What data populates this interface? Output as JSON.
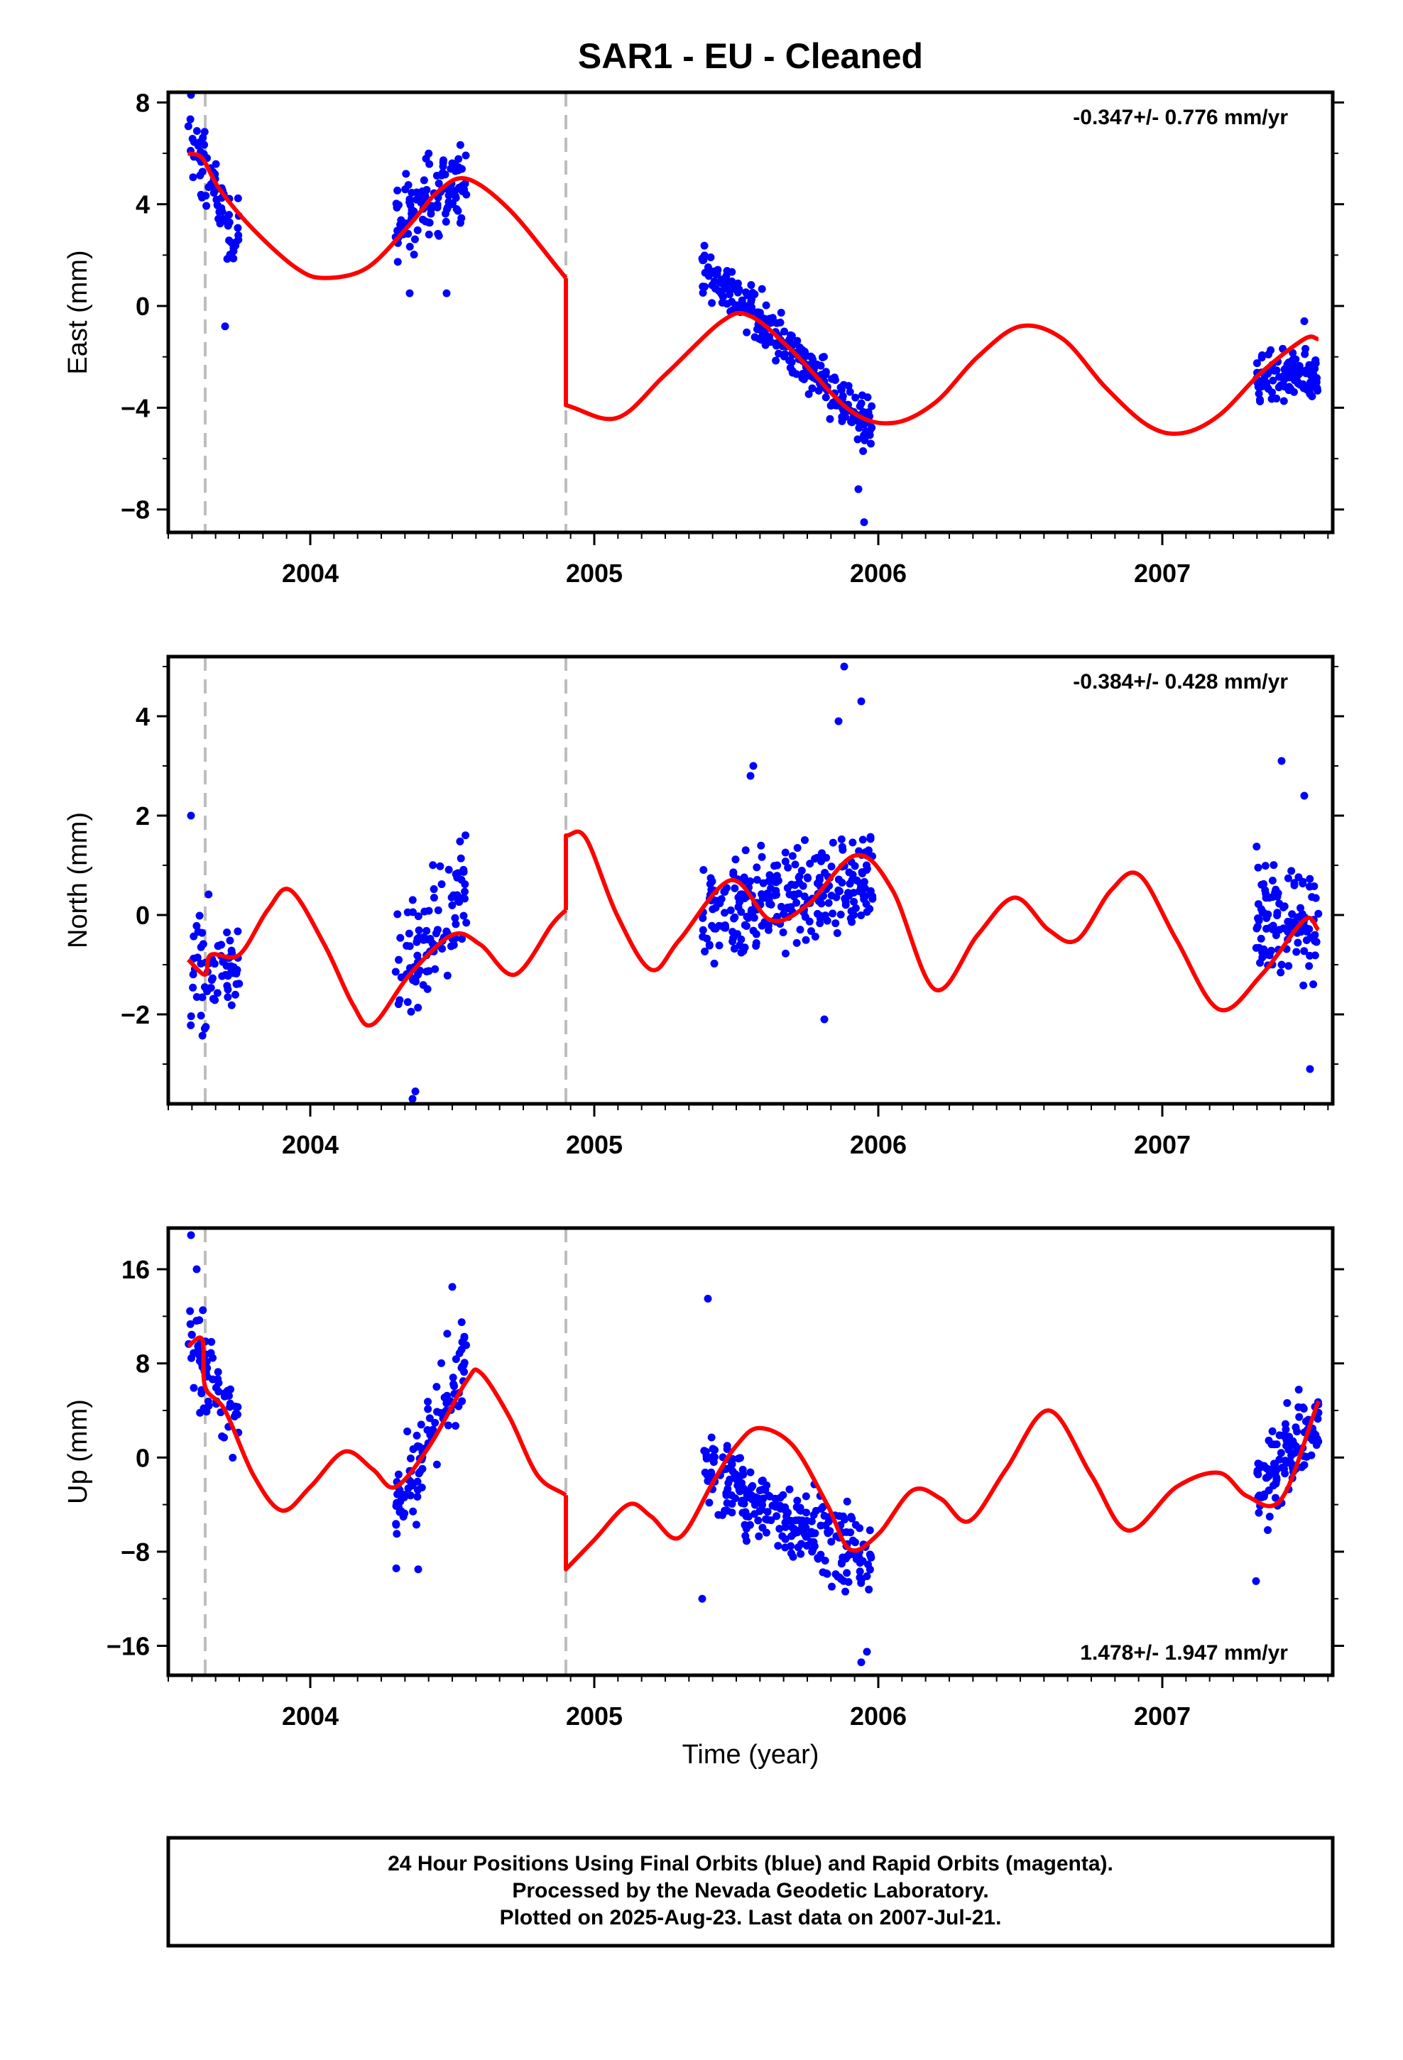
{
  "title": "SAR1  - EU - Cleaned",
  "xlabel": "Time (year)",
  "footer": {
    "line1": "24 Hour Positions Using Final Orbits (blue) and Rapid Orbits (magenta).",
    "line2": "Processed by the Nevada Geodetic Laboratory.",
    "line3": "Plotted on 2025-Aug-23. Last data on 2007-Jul-21."
  },
  "colors": {
    "data": "#0000ff",
    "model": "#ff0000",
    "steps": "#bdbdbd",
    "frame": "#000000"
  },
  "chart_data": [
    {
      "type": "scatter",
      "ylabel": "East (mm)",
      "rate": "-0.347+/- 0.776 mm/yr",
      "xlim": [
        2003.5,
        2007.6
      ],
      "ylim": [
        -8.9,
        8.4
      ],
      "yticks": [
        -8,
        -4,
        0,
        4,
        8
      ],
      "xticks": [
        2004,
        2005,
        2006,
        2007
      ],
      "steps": [
        2003.63,
        2004.9
      ],
      "clusters": [
        {
          "start": 2003.57,
          "end": 2003.75,
          "trend_start": 6.5,
          "trend_end": 2.5,
          "spread": 1.3,
          "count": 70
        },
        {
          "start": 2004.3,
          "end": 2004.55,
          "trend_start": 3.3,
          "trend_end": 5.2,
          "spread": 1.4,
          "count": 110
        },
        {
          "start": 2005.38,
          "end": 2005.98,
          "trend_start": 1.6,
          "trend_end": -4.8,
          "spread": 0.9,
          "count": 270
        },
        {
          "start": 2007.33,
          "end": 2007.55,
          "trend_start": -3.0,
          "trend_end": -2.8,
          "spread": 0.9,
          "count": 110
        }
      ],
      "outliers": [
        [
          2003.58,
          8.3
        ],
        [
          2003.7,
          -0.8
        ],
        [
          2005.95,
          -8.5
        ],
        [
          2005.93,
          -7.2
        ],
        [
          2004.35,
          0.5
        ],
        [
          2004.48,
          0.5
        ],
        [
          2007.5,
          -0.6
        ]
      ],
      "model": {
        "segments": [
          {
            "x": [
              2003.57,
              2003.62,
              2003.68,
              2003.8,
              2003.95,
              2004.05,
              2004.2,
              2004.35,
              2004.45,
              2004.55,
              2004.7,
              2004.9
            ],
            "y": [
              6.0,
              5.8,
              4.6,
              3.0,
              1.5,
              1.1,
              1.5,
              3.2,
              4.5,
              5.0,
              3.8,
              1.1
            ]
          },
          {
            "x": [
              2004.9,
              2004.9,
              2005.08,
              2005.25,
              2005.45,
              2005.55,
              2005.7,
              2005.9,
              2006.05,
              2006.2,
              2006.35,
              2006.5,
              2006.65,
              2006.8,
              2006.95,
              2007.07,
              2007.2,
              2007.35,
              2007.5,
              2007.55
            ],
            "y": [
              1.1,
              -3.9,
              -4.4,
              -2.7,
              -0.6,
              -0.4,
              -1.8,
              -4.1,
              -4.6,
              -3.8,
              -2.0,
              -0.8,
              -1.3,
              -3.2,
              -4.7,
              -5.0,
              -4.3,
              -2.6,
              -1.3,
              -1.3
            ]
          }
        ]
      }
    },
    {
      "type": "scatter",
      "ylabel": "North (mm)",
      "rate": "-0.384+/- 0.428 mm/yr",
      "xlim": [
        2003.5,
        2007.6
      ],
      "ylim": [
        -3.8,
        5.2
      ],
      "yticks": [
        -2,
        0,
        2,
        4
      ],
      "xticks": [
        2004,
        2005,
        2006,
        2007
      ],
      "steps": [
        2003.63,
        2004.9
      ],
      "clusters": [
        {
          "start": 2003.57,
          "end": 2003.75,
          "trend_start": -1.3,
          "trend_end": -0.8,
          "spread": 1.1,
          "count": 70
        },
        {
          "start": 2004.3,
          "end": 2004.55,
          "trend_start": -1.4,
          "trend_end": 0.6,
          "spread": 1.0,
          "count": 100
        },
        {
          "start": 2005.38,
          "end": 2005.98,
          "trend_start": 0.0,
          "trend_end": 0.8,
          "spread": 0.9,
          "count": 270
        },
        {
          "start": 2007.33,
          "end": 2007.55,
          "trend_start": 0.0,
          "trend_end": -0.2,
          "spread": 1.1,
          "count": 110
        }
      ],
      "outliers": [
        [
          2003.58,
          2.0
        ],
        [
          2004.37,
          -3.55
        ],
        [
          2004.36,
          -3.7
        ],
        [
          2005.88,
          5.0
        ],
        [
          2005.94,
          4.3
        ],
        [
          2005.86,
          3.9
        ],
        [
          2005.56,
          3.0
        ],
        [
          2005.55,
          2.8
        ],
        [
          2007.42,
          3.1
        ],
        [
          2007.5,
          2.4
        ],
        [
          2007.52,
          -3.1
        ],
        [
          2005.81,
          -2.1
        ]
      ],
      "model": {
        "segments": [
          {
            "x": [
              2003.57,
              2003.63,
              2003.65,
              2003.75,
              2003.85,
              2003.93,
              2004.05,
              2004.15,
              2004.22,
              2004.35,
              2004.5,
              2004.6,
              2004.72,
              2004.85,
              2004.9
            ],
            "y": [
              -0.9,
              -1.2,
              -0.8,
              -0.8,
              0.1,
              0.5,
              -0.6,
              -1.8,
              -2.2,
              -1.2,
              -0.4,
              -0.6,
              -1.2,
              -0.2,
              0.1
            ]
          },
          {
            "x": [
              2004.9,
              2004.9,
              2004.97,
              2005.08,
              2005.2,
              2005.3,
              2005.48,
              2005.62,
              2005.75,
              2005.92,
              2006.05,
              2006.2,
              2006.35,
              2006.48,
              2006.6,
              2006.7,
              2006.82,
              2006.92,
              2007.05,
              2007.2,
              2007.35,
              2007.5,
              2007.55
            ],
            "y": [
              0.1,
              1.6,
              1.55,
              0.0,
              -1.1,
              -0.5,
              0.7,
              -0.1,
              0.2,
              1.2,
              0.5,
              -1.5,
              -0.4,
              0.35,
              -0.3,
              -0.5,
              0.5,
              0.8,
              -0.5,
              -1.9,
              -1.2,
              -0.1,
              -0.3
            ]
          }
        ]
      }
    },
    {
      "type": "scatter",
      "ylabel": "Up (mm)",
      "rate": "1.478+/- 1.947 mm/yr",
      "xlim": [
        2003.5,
        2007.6
      ],
      "ylim": [
        -18.5,
        19.5
      ],
      "yticks": [
        -16,
        -8,
        0,
        8,
        16
      ],
      "xticks": [
        2004,
        2005,
        2006,
        2007
      ],
      "steps": [
        2003.63,
        2004.9
      ],
      "clusters": [
        {
          "start": 2003.57,
          "end": 2003.75,
          "trend_start": 10.0,
          "trend_end": 2.0,
          "spread": 3.0,
          "count": 70
        },
        {
          "start": 2004.3,
          "end": 2004.55,
          "trend_start": -5.0,
          "trend_end": 9.0,
          "spread": 3.5,
          "count": 100
        },
        {
          "start": 2005.38,
          "end": 2005.98,
          "trend_start": -1.0,
          "trend_end": -9.0,
          "spread": 3.0,
          "count": 260
        },
        {
          "start": 2007.33,
          "end": 2007.55,
          "trend_start": -3.0,
          "trend_end": 3.0,
          "spread": 3.0,
          "count": 110
        }
      ],
      "outliers": [
        [
          2003.58,
          18.9
        ],
        [
          2003.6,
          16.0
        ],
        [
          2005.4,
          13.5
        ],
        [
          2005.38,
          -12.0
        ],
        [
          2005.96,
          -16.5
        ],
        [
          2005.94,
          -17.4
        ],
        [
          2007.33,
          -10.5
        ],
        [
          2004.38,
          -9.5
        ],
        [
          2004.5,
          14.5
        ]
      ],
      "model": {
        "segments": [
          {
            "x": [
              2003.57,
              2003.62,
              2003.63,
              2003.7,
              2003.8,
              2003.9,
              2004.0,
              2004.12,
              2004.22,
              2004.3,
              2004.42,
              2004.55,
              2004.6,
              2004.7,
              2004.8,
              2004.9
            ],
            "y": [
              9.5,
              10.0,
              6.0,
              4.0,
              -1.5,
              -4.5,
              -2.5,
              0.5,
              -1.0,
              -2.5,
              1.0,
              6.5,
              7.2,
              3.5,
              -1.5,
              -3.2
            ]
          },
          {
            "x": [
              2004.9,
              2004.9,
              2005.0,
              2005.12,
              2005.2,
              2005.3,
              2005.42,
              2005.5,
              2005.58,
              2005.7,
              2005.82,
              2005.9,
              2006.0,
              2006.12,
              2006.22,
              2006.32,
              2006.45,
              2006.6,
              2006.75,
              2006.88,
              2007.05,
              2007.2,
              2007.3,
              2007.42,
              2007.55
            ],
            "y": [
              -3.2,
              -9.5,
              -7.0,
              -4.0,
              -5.0,
              -6.8,
              -2.0,
              1.0,
              2.5,
              1.0,
              -4.0,
              -7.8,
              -6.5,
              -2.8,
              -3.5,
              -5.4,
              -1.0,
              4.0,
              -1.5,
              -6.2,
              -2.5,
              -1.3,
              -3.3,
              -3.5,
              4.8
            ]
          }
        ]
      }
    }
  ]
}
